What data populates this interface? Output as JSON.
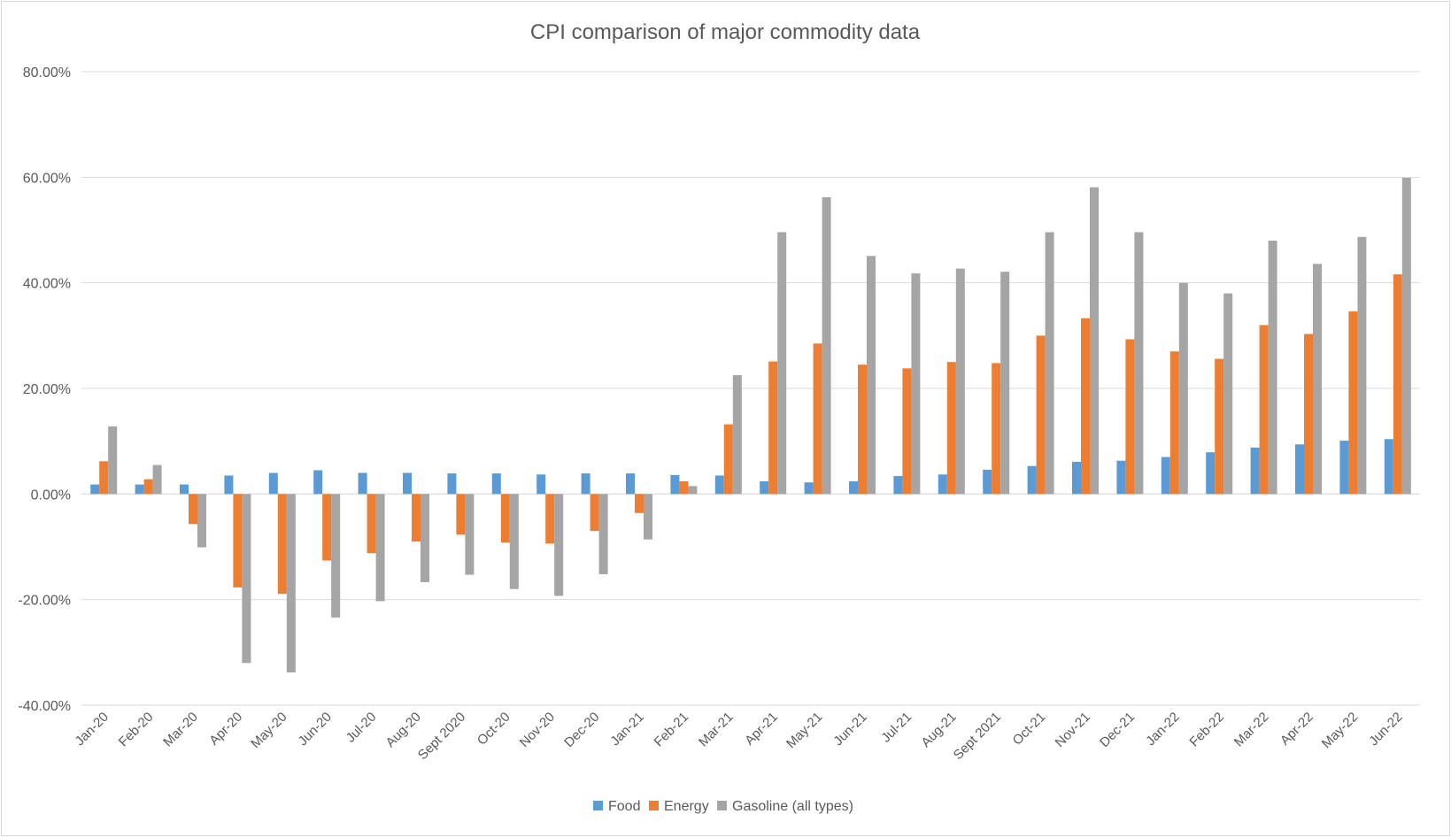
{
  "chart_data": {
    "type": "bar",
    "title": "CPI comparison of major commodity data",
    "xlabel": "",
    "ylabel": "",
    "ylim": [
      -40,
      80
    ],
    "yticks": [
      "80.00%",
      "60.00%",
      "40.00%",
      "20.00%",
      "0.00%",
      "-20.00%",
      "-40.00%"
    ],
    "ytick_values": [
      80,
      60,
      40,
      20,
      0,
      -20,
      -40
    ],
    "grid": true,
    "legend_position": "bottom",
    "categories": [
      "Jan-20",
      "Feb-20",
      "Mar-20",
      "Apr-20",
      "May-20",
      "Jun-20",
      "Jul-20",
      "Aug-20",
      "Sept 2020",
      "Oct-20",
      "Nov-20",
      "Dec-20",
      "Jan-21",
      "Feb-21",
      "Mar-21",
      "Apr-21",
      "May-21",
      "Jun-21",
      "Jul-21",
      "Aug-21",
      "Sept 2021",
      "Oct-21",
      "Nov-21",
      "Dec-21",
      "Jan-22",
      "Feb-22",
      "Mar-22",
      "Apr-22",
      "May-22",
      "Jun-22"
    ],
    "series": [
      {
        "name": "Food",
        "color": "#5b9bd5",
        "values": [
          1.8,
          1.8,
          1.8,
          3.5,
          4.0,
          4.5,
          4.0,
          4.0,
          3.9,
          3.9,
          3.7,
          3.9,
          3.9,
          3.6,
          3.5,
          2.4,
          2.2,
          2.4,
          3.4,
          3.7,
          4.6,
          5.3,
          6.1,
          6.3,
          7.0,
          7.9,
          8.8,
          9.4,
          10.1,
          10.4
        ]
      },
      {
        "name": "Energy",
        "color": "#ed7d31",
        "values": [
          6.2,
          2.8,
          -5.7,
          -17.7,
          -18.9,
          -12.6,
          -11.2,
          -9.0,
          -7.7,
          -9.2,
          -9.4,
          -7.0,
          -3.6,
          2.4,
          13.2,
          25.1,
          28.5,
          24.5,
          23.8,
          25.0,
          24.8,
          30.0,
          33.3,
          29.3,
          27.0,
          25.6,
          32.0,
          30.3,
          34.6,
          41.6
        ]
      },
      {
        "name": "Gasoline (all types)",
        "color": "#a5a5a5",
        "values": [
          12.8,
          5.5,
          -10.1,
          -32.0,
          -33.8,
          -23.4,
          -20.3,
          -16.7,
          -15.3,
          -18.0,
          -19.3,
          -15.2,
          -8.6,
          1.5,
          22.5,
          49.6,
          56.2,
          45.1,
          41.8,
          42.7,
          42.1,
          49.6,
          58.1,
          49.6,
          40.0,
          38.0,
          48.0,
          43.6,
          48.7,
          59.9
        ]
      }
    ]
  }
}
